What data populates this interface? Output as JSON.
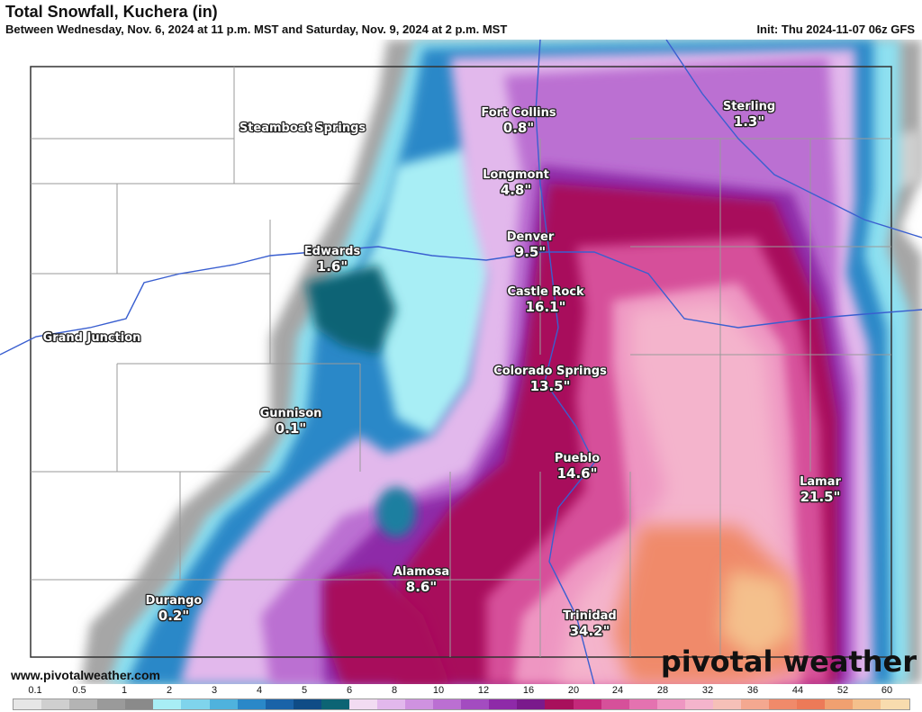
{
  "header": {
    "title": "Total Snowfall, Kuchera (in)",
    "subtitle": "Between Wednesday, Nov. 6, 2024 at 11 p.m. MST and Saturday, Nov. 9, 2024 at 2 p.m. MST",
    "init": "Init: Thu 2024-11-07 06z GFS"
  },
  "cities": [
    {
      "name": "Fort Collins",
      "value": "0.8\""
    },
    {
      "name": "Sterling",
      "value": "1.3\""
    },
    {
      "name": "Steamboat Springs",
      "value": ""
    },
    {
      "name": "Longmont",
      "value": "4.8\""
    },
    {
      "name": "Denver",
      "value": "9.5\""
    },
    {
      "name": "Edwards",
      "value": "1.6\""
    },
    {
      "name": "Castle Rock",
      "value": "16.1\""
    },
    {
      "name": "Grand Junction",
      "value": ""
    },
    {
      "name": "Colorado Springs",
      "value": "13.5\""
    },
    {
      "name": "Gunnison",
      "value": "0.1\""
    },
    {
      "name": "Pueblo",
      "value": "14.6\""
    },
    {
      "name": "Lamar",
      "value": "21.5\""
    },
    {
      "name": "Alamosa",
      "value": "8.6\""
    },
    {
      "name": "Durango",
      "value": "0.2\""
    },
    {
      "name": "Trinidad",
      "value": "34.2\""
    }
  ],
  "footer": {
    "website": "www.pivotalweather.com",
    "brand": "pivotal weather"
  },
  "legend": {
    "labels": [
      "0.1",
      "0.5",
      "1",
      "2",
      "3",
      "4",
      "5",
      "6",
      "8",
      "10",
      "12",
      "16",
      "20",
      "24",
      "28",
      "32",
      "36",
      "44",
      "52",
      "60"
    ],
    "colors": [
      "#e6e6e6",
      "#cfcfcf",
      "#b4b4b4",
      "#9a9a9a",
      "#8a8a8a",
      "#a8eef5",
      "#7fd4ec",
      "#4fb2dd",
      "#2a88c8",
      "#1a63a8",
      "#0f4c86",
      "#0c6474",
      "#f2dcf2",
      "#e2b8ec",
      "#cf92e0",
      "#bb6fd2",
      "#a34cc0",
      "#8e2aa8",
      "#7a1a8c",
      "#a8105c",
      "#c4287a",
      "#d6509a",
      "#e472b0",
      "#ee96c2",
      "#f4b4cc",
      "#f6c0b8",
      "#f4a890",
      "#f08a6a",
      "#ec7a58",
      "#f0a070",
      "#f4c08c",
      "#f8dcae"
    ]
  },
  "colors": {
    "pink_deep": "#a8105c",
    "pink": "#d6509a",
    "salmon": "#f4b4cc",
    "orange": "#ec7a58",
    "purple": "#a34cc0",
    "cyan": "#7fd4ec",
    "blue": "#1a63a8",
    "gray": "#9a9a9a",
    "river": "#3a5fd0"
  }
}
